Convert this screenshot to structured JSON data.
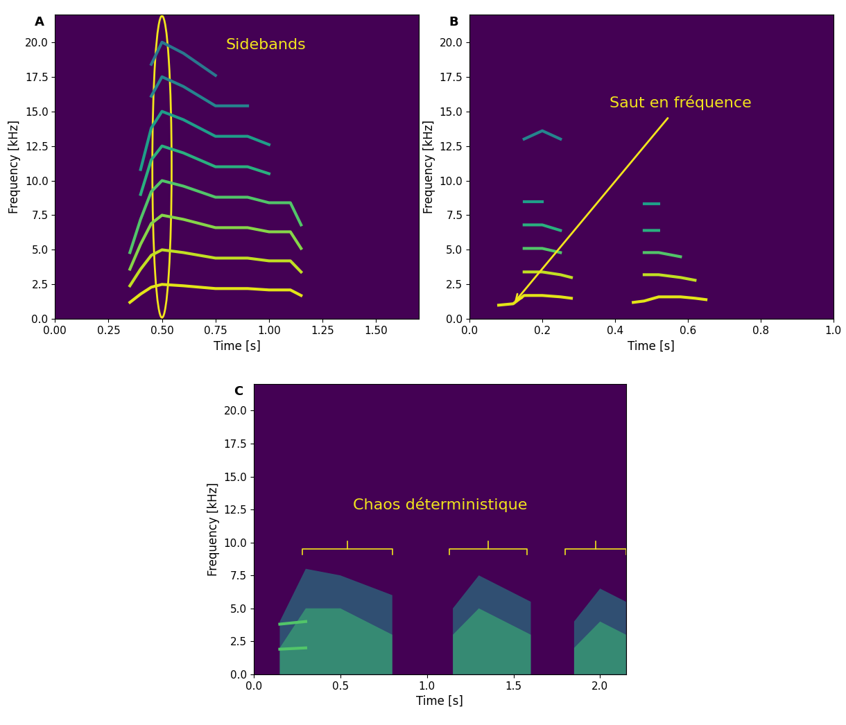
{
  "chart_data": [
    {
      "type": "line",
      "title": "A",
      "x_label": "Time [s]",
      "y_label": "Frequency [kHz]",
      "xlim": [
        0,
        1.7
      ],
      "xticks": [
        {
          "value": 0,
          "label": "0.00"
        },
        0.25,
        {
          "value": 0.5,
          "label": "0.50"
        },
        0.75,
        {
          "value": 1.0,
          "label": "1.00"
        },
        1.25,
        {
          "value": 1.5,
          "label": "1.50"
        }
      ],
      "ylim": [
        0,
        22
      ],
      "yticks": [
        {
          "value": 0,
          "label": "0.0"
        },
        2.5,
        {
          "value": 5,
          "label": "5.0"
        },
        7.5,
        {
          "value": 10,
          "label": "10.0"
        },
        12.5,
        {
          "value": 15,
          "label": "15.0"
        },
        17.5,
        {
          "value": 20,
          "label": "20.0"
        }
      ],
      "x": [
        0.35,
        0.4,
        0.45,
        0.5,
        0.6,
        0.75,
        0.9,
        1.0,
        1.1,
        1.15
      ],
      "series": [
        {
          "color": "#e3e418",
          "values": [
            1.2,
            1.8,
            2.3,
            2.5,
            2.4,
            2.2,
            2.2,
            2.1,
            2.1,
            1.7
          ]
        },
        {
          "color": "#c2df23",
          "values": [
            2.4,
            3.6,
            4.6,
            5.0,
            4.8,
            4.4,
            4.4,
            4.2,
            4.2,
            3.4
          ]
        },
        {
          "color": "#86d549",
          "values": [
            3.6,
            5.4,
            6.9,
            7.5,
            7.2,
            6.6,
            6.6,
            6.3,
            6.3,
            5.1
          ]
        },
        {
          "color": "#52c569",
          "values": [
            4.8,
            7.2,
            9.2,
            10.0,
            9.6,
            8.8,
            8.8,
            8.4,
            8.4,
            6.8
          ]
        },
        {
          "color": "#2ab07f",
          "values": [
            null,
            9.0,
            11.5,
            12.5,
            12.0,
            11.0,
            11.0,
            10.5,
            null,
            null
          ]
        },
        {
          "color": "#1f9e89",
          "values": [
            null,
            10.8,
            13.8,
            15.0,
            14.4,
            13.2,
            13.2,
            12.6,
            null,
            null
          ]
        },
        {
          "color": "#25858e",
          "values": [
            null,
            null,
            16.1,
            17.5,
            16.8,
            15.4,
            15.4,
            null,
            null,
            null
          ]
        },
        {
          "color": "#2a788e",
          "values": [
            null,
            null,
            18.4,
            20.0,
            19.2,
            17.6,
            null,
            null,
            null,
            null
          ]
        }
      ],
      "annotations": [
        {
          "text": "Sidebands",
          "x": 0.5,
          "y": 11,
          "marker": "ellipse"
        }
      ]
    },
    {
      "type": "line",
      "title": "B",
      "x_label": "Time [s]",
      "y_label": "Frequency [kHz]",
      "xlim": [
        0,
        1.0
      ],
      "xticks": [
        {
          "value": 0,
          "label": "0.0"
        },
        0.2,
        0.4,
        0.6,
        0.8,
        {
          "value": 1.0,
          "label": "1.0"
        }
      ],
      "ylim": [
        0,
        22
      ],
      "yticks": [
        {
          "value": 0,
          "label": "0.0"
        },
        2.5,
        {
          "value": 5,
          "label": "5.0"
        },
        7.5,
        {
          "value": 10,
          "label": "10.0"
        },
        12.5,
        {
          "value": 15,
          "label": "15.0"
        },
        17.5,
        {
          "value": 20,
          "label": "20.0"
        }
      ],
      "x": [
        0.08,
        0.12,
        0.15,
        0.2,
        0.25,
        0.28,
        0.35,
        0.45,
        0.48,
        0.52,
        0.58,
        0.62,
        0.65
      ],
      "series": [
        {
          "color": "#e3e418",
          "values": [
            1.0,
            1.1,
            1.7,
            1.7,
            1.6,
            1.5,
            null,
            1.2,
            1.3,
            1.6,
            1.6,
            1.5,
            1.4
          ]
        },
        {
          "color": "#c2df23",
          "values": [
            null,
            null,
            3.4,
            3.4,
            3.2,
            3.0,
            null,
            null,
            3.2,
            3.2,
            3.0,
            2.8,
            null
          ]
        },
        {
          "color": "#52c569",
          "values": [
            null,
            null,
            5.1,
            5.1,
            4.8,
            null,
            null,
            null,
            4.8,
            4.8,
            4.5,
            null,
            null
          ]
        },
        {
          "color": "#2ab07f",
          "values": [
            null,
            null,
            6.8,
            6.8,
            6.4,
            null,
            null,
            null,
            6.4,
            6.4,
            null,
            null,
            null
          ]
        },
        {
          "color": "#1f9e89",
          "values": [
            null,
            null,
            8.5,
            8.5,
            null,
            null,
            null,
            null,
            8.3,
            8.3,
            null,
            null,
            null
          ]
        },
        {
          "color": "#25858e",
          "values": [
            null,
            null,
            13.0,
            13.6,
            13.0,
            null,
            null,
            null,
            null,
            null,
            null,
            null,
            null
          ]
        }
      ],
      "annotations": [
        {
          "text": "Saut en fréquence",
          "x": 0.12,
          "y": 1.1,
          "marker": "arrow"
        }
      ]
    },
    {
      "type": "area",
      "title": "C",
      "x_label": "Time [s]",
      "y_label": "Frequency [kHz]",
      "xlim": [
        0,
        2.15
      ],
      "xticks": [
        {
          "value": 0,
          "label": "0.0"
        },
        0.5,
        {
          "value": 1.0,
          "label": "1.0"
        },
        1.5,
        {
          "value": 2.0,
          "label": "2.0"
        }
      ],
      "ylim": [
        0,
        22
      ],
      "yticks": [
        {
          "value": 0,
          "label": "0.0"
        },
        2.5,
        {
          "value": 5,
          "label": "5.0"
        },
        7.5,
        {
          "value": 10,
          "label": "10.0"
        },
        12.5,
        {
          "value": 15,
          "label": "15.0"
        },
        17.5,
        {
          "value": 20,
          "label": "20.0"
        }
      ],
      "x": [
        0.15,
        0.3,
        0.5,
        0.8,
        1.0,
        1.15,
        1.3,
        1.6,
        1.75,
        1.85,
        2.0,
        2.15
      ],
      "series": [
        {
          "color": "#21918c",
          "values": [
            4.0,
            8.0,
            7.5,
            6.0,
            null,
            5.0,
            7.5,
            5.5,
            null,
            4.0,
            6.5,
            5.5
          ]
        },
        {
          "color": "#3bbb75",
          "values": [
            2.0,
            5.0,
            5.0,
            3.0,
            null,
            3.0,
            5.0,
            3.0,
            null,
            2.0,
            4.0,
            3.0
          ]
        },
        {
          "type": "line",
          "color": "#52c569",
          "values": [
            3.8,
            4.0,
            null,
            null,
            null,
            null,
            null,
            null,
            null,
            null,
            null,
            null
          ]
        },
        {
          "type": "line",
          "color": "#52c569",
          "values": [
            1.9,
            2.0,
            null,
            null,
            null,
            null,
            null,
            null,
            null,
            null,
            null,
            null
          ]
        }
      ],
      "annotations": [
        {
          "text": "Chaos déterministique",
          "spans": [
            [
              0.28,
              0.8
            ],
            [
              1.13,
              1.58
            ],
            [
              1.8,
              2.15
            ]
          ],
          "y": 9.5,
          "marker": "brace"
        }
      ]
    }
  ]
}
